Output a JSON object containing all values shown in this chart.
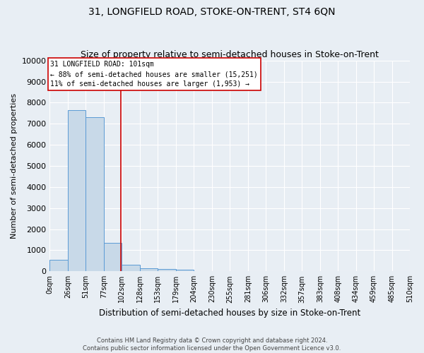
{
  "title": "31, LONGFIELD ROAD, STOKE-ON-TRENT, ST4 6QN",
  "subtitle": "Size of property relative to semi-detached houses in Stoke-on-Trent",
  "xlabel": "Distribution of semi-detached houses by size in Stoke-on-Trent",
  "ylabel": "Number of semi-detached properties",
  "footer_line1": "Contains HM Land Registry data © Crown copyright and database right 2024.",
  "footer_line2": "Contains public sector information licensed under the Open Government Licence v3.0.",
  "bin_labels": [
    "0sqm",
    "26sqm",
    "51sqm",
    "77sqm",
    "102sqm",
    "128sqm",
    "153sqm",
    "179sqm",
    "204sqm",
    "230sqm",
    "255sqm",
    "281sqm",
    "306sqm",
    "332sqm",
    "357sqm",
    "383sqm",
    "408sqm",
    "434sqm",
    "459sqm",
    "485sqm",
    "510sqm"
  ],
  "bin_edges": [
    0,
    26,
    51,
    77,
    102,
    128,
    153,
    179,
    204,
    230,
    255,
    281,
    306,
    332,
    357,
    383,
    408,
    434,
    459,
    485,
    510
  ],
  "bar_heights": [
    550,
    7650,
    7300,
    1350,
    310,
    155,
    100,
    90,
    0,
    0,
    0,
    0,
    0,
    0,
    0,
    0,
    0,
    0,
    0,
    0
  ],
  "bar_color": "#c8d9e8",
  "bar_edge_color": "#5b9bd5",
  "property_size": 101,
  "property_line_color": "#cc0000",
  "annotation_text_line1": "31 LONGFIELD ROAD: 101sqm",
  "annotation_text_line2": "← 88% of semi-detached houses are smaller (15,251)",
  "annotation_text_line3": "11% of semi-detached houses are larger (1,953) →",
  "annotation_box_color": "#ffffff",
  "annotation_box_edge_color": "#cc0000",
  "ylim": [
    0,
    10000
  ],
  "yticks": [
    0,
    1000,
    2000,
    3000,
    4000,
    5000,
    6000,
    7000,
    8000,
    9000,
    10000
  ],
  "background_color": "#e8eef4",
  "plot_bg_color": "#e8eef4",
  "grid_color": "#ffffff",
  "title_fontsize": 10,
  "subtitle_fontsize": 9
}
